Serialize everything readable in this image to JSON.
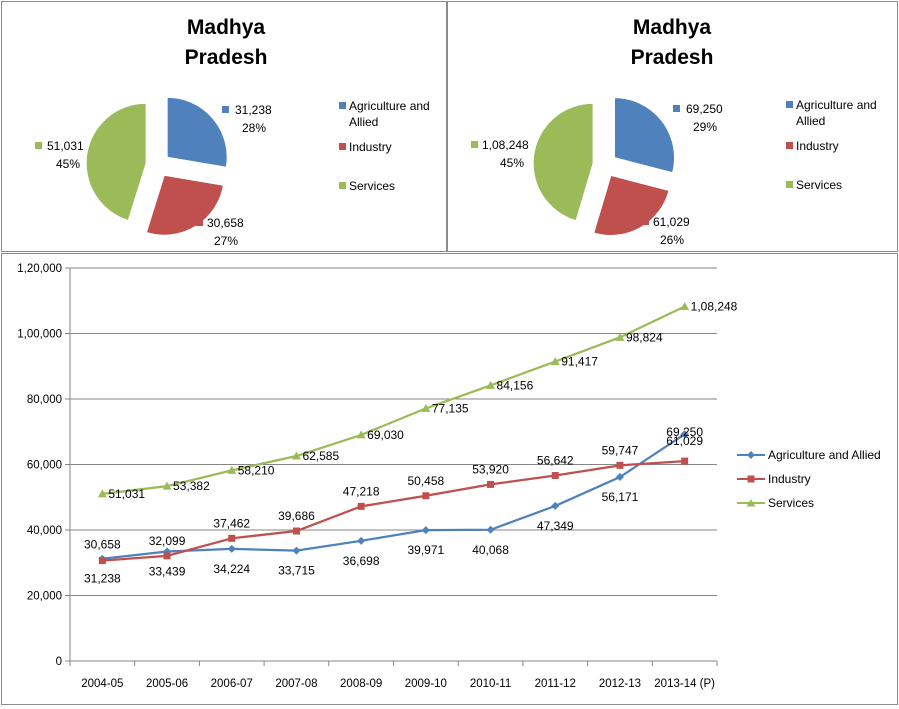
{
  "chart_data": [
    {
      "type": "pie",
      "title": "Madhya Pradesh",
      "title_lines": [
        "Madhya",
        "Pradesh"
      ],
      "slices": [
        {
          "name": "Agriculture and Allied",
          "value": 31238,
          "value_label": "31,238",
          "percent": "28%",
          "color": "#4F81BD"
        },
        {
          "name": "Industry",
          "value": 30658,
          "value_label": "30,658",
          "percent": "27%",
          "color": "#C0504D"
        },
        {
          "name": "Services",
          "value": 51031,
          "value_label": "51,031",
          "percent": "45%",
          "color": "#9BBB59"
        }
      ],
      "legend": [
        {
          "lines": [
            "Agriculture and",
            "Allied"
          ],
          "color": "#4F81BD"
        },
        {
          "lines": [
            "Industry"
          ],
          "color": "#C0504D"
        },
        {
          "lines": [
            "Services"
          ],
          "color": "#9BBB59"
        }
      ]
    },
    {
      "type": "pie",
      "title": "Madhya Pradesh",
      "title_lines": [
        "Madhya",
        "Pradesh"
      ],
      "slices": [
        {
          "name": "Agriculture and Allied",
          "value": 69250,
          "value_label": "69,250",
          "percent": "29%",
          "color": "#4F81BD"
        },
        {
          "name": "Industry",
          "value": 61029,
          "value_label": "61,029",
          "percent": "26%",
          "color": "#C0504D"
        },
        {
          "name": "Services",
          "value": 108248,
          "value_label": "1,08,248",
          "percent": "45%",
          "color": "#9BBB59"
        }
      ],
      "legend": [
        {
          "lines": [
            "Agriculture and",
            "Allied"
          ],
          "color": "#4F81BD"
        },
        {
          "lines": [
            "Industry"
          ],
          "color": "#C0504D"
        },
        {
          "lines": [
            "Services"
          ],
          "color": "#9BBB59"
        }
      ]
    },
    {
      "type": "line",
      "categories": [
        "2004-05",
        "2005-06",
        "2006-07",
        "2007-08",
        "2008-09",
        "2009-10",
        "2010-11",
        "2011-12",
        "2012-13",
        "2013-14 (P)"
      ],
      "ylim": [
        0,
        120000
      ],
      "yticks": [
        0,
        20000,
        40000,
        60000,
        80000,
        100000,
        120000
      ],
      "ytick_labels": [
        "0",
        "20,000",
        "40,000",
        "60,000",
        "80,000",
        "1,00,000",
        "1,20,000"
      ],
      "grid": true,
      "legend_position": "right",
      "series": [
        {
          "name": "Agriculture and Allied",
          "color": "#4F81BD",
          "marker": "diamond",
          "values": [
            31238,
            33439,
            34224,
            33715,
            36698,
            39971,
            40068,
            47349,
            56171,
            69250
          ],
          "labels": [
            "31,238",
            "33,439",
            "34,224",
            "33,715",
            "36,698",
            "39,971",
            "40,068",
            "47,349",
            "56,171",
            "69,250"
          ]
        },
        {
          "name": "Industry",
          "color": "#C0504D",
          "marker": "square",
          "values": [
            30658,
            32099,
            37462,
            39686,
            47218,
            50458,
            53920,
            56642,
            59747,
            61029
          ],
          "labels": [
            "30,658",
            "32,099",
            "37,462",
            "39,686",
            "47,218",
            "50,458",
            "53,920",
            "56,642",
            "59,747",
            "61,029"
          ]
        },
        {
          "name": "Services",
          "color": "#9BBB59",
          "marker": "triangle",
          "values": [
            51031,
            53382,
            58210,
            62585,
            69030,
            77135,
            84156,
            91417,
            98824,
            108248
          ],
          "labels": [
            "51,031",
            "53,382",
            "58,210",
            "62,585",
            "69,030",
            "77,135",
            "84,156",
            "91,417",
            "98,824",
            "1,08,248"
          ]
        }
      ]
    }
  ]
}
